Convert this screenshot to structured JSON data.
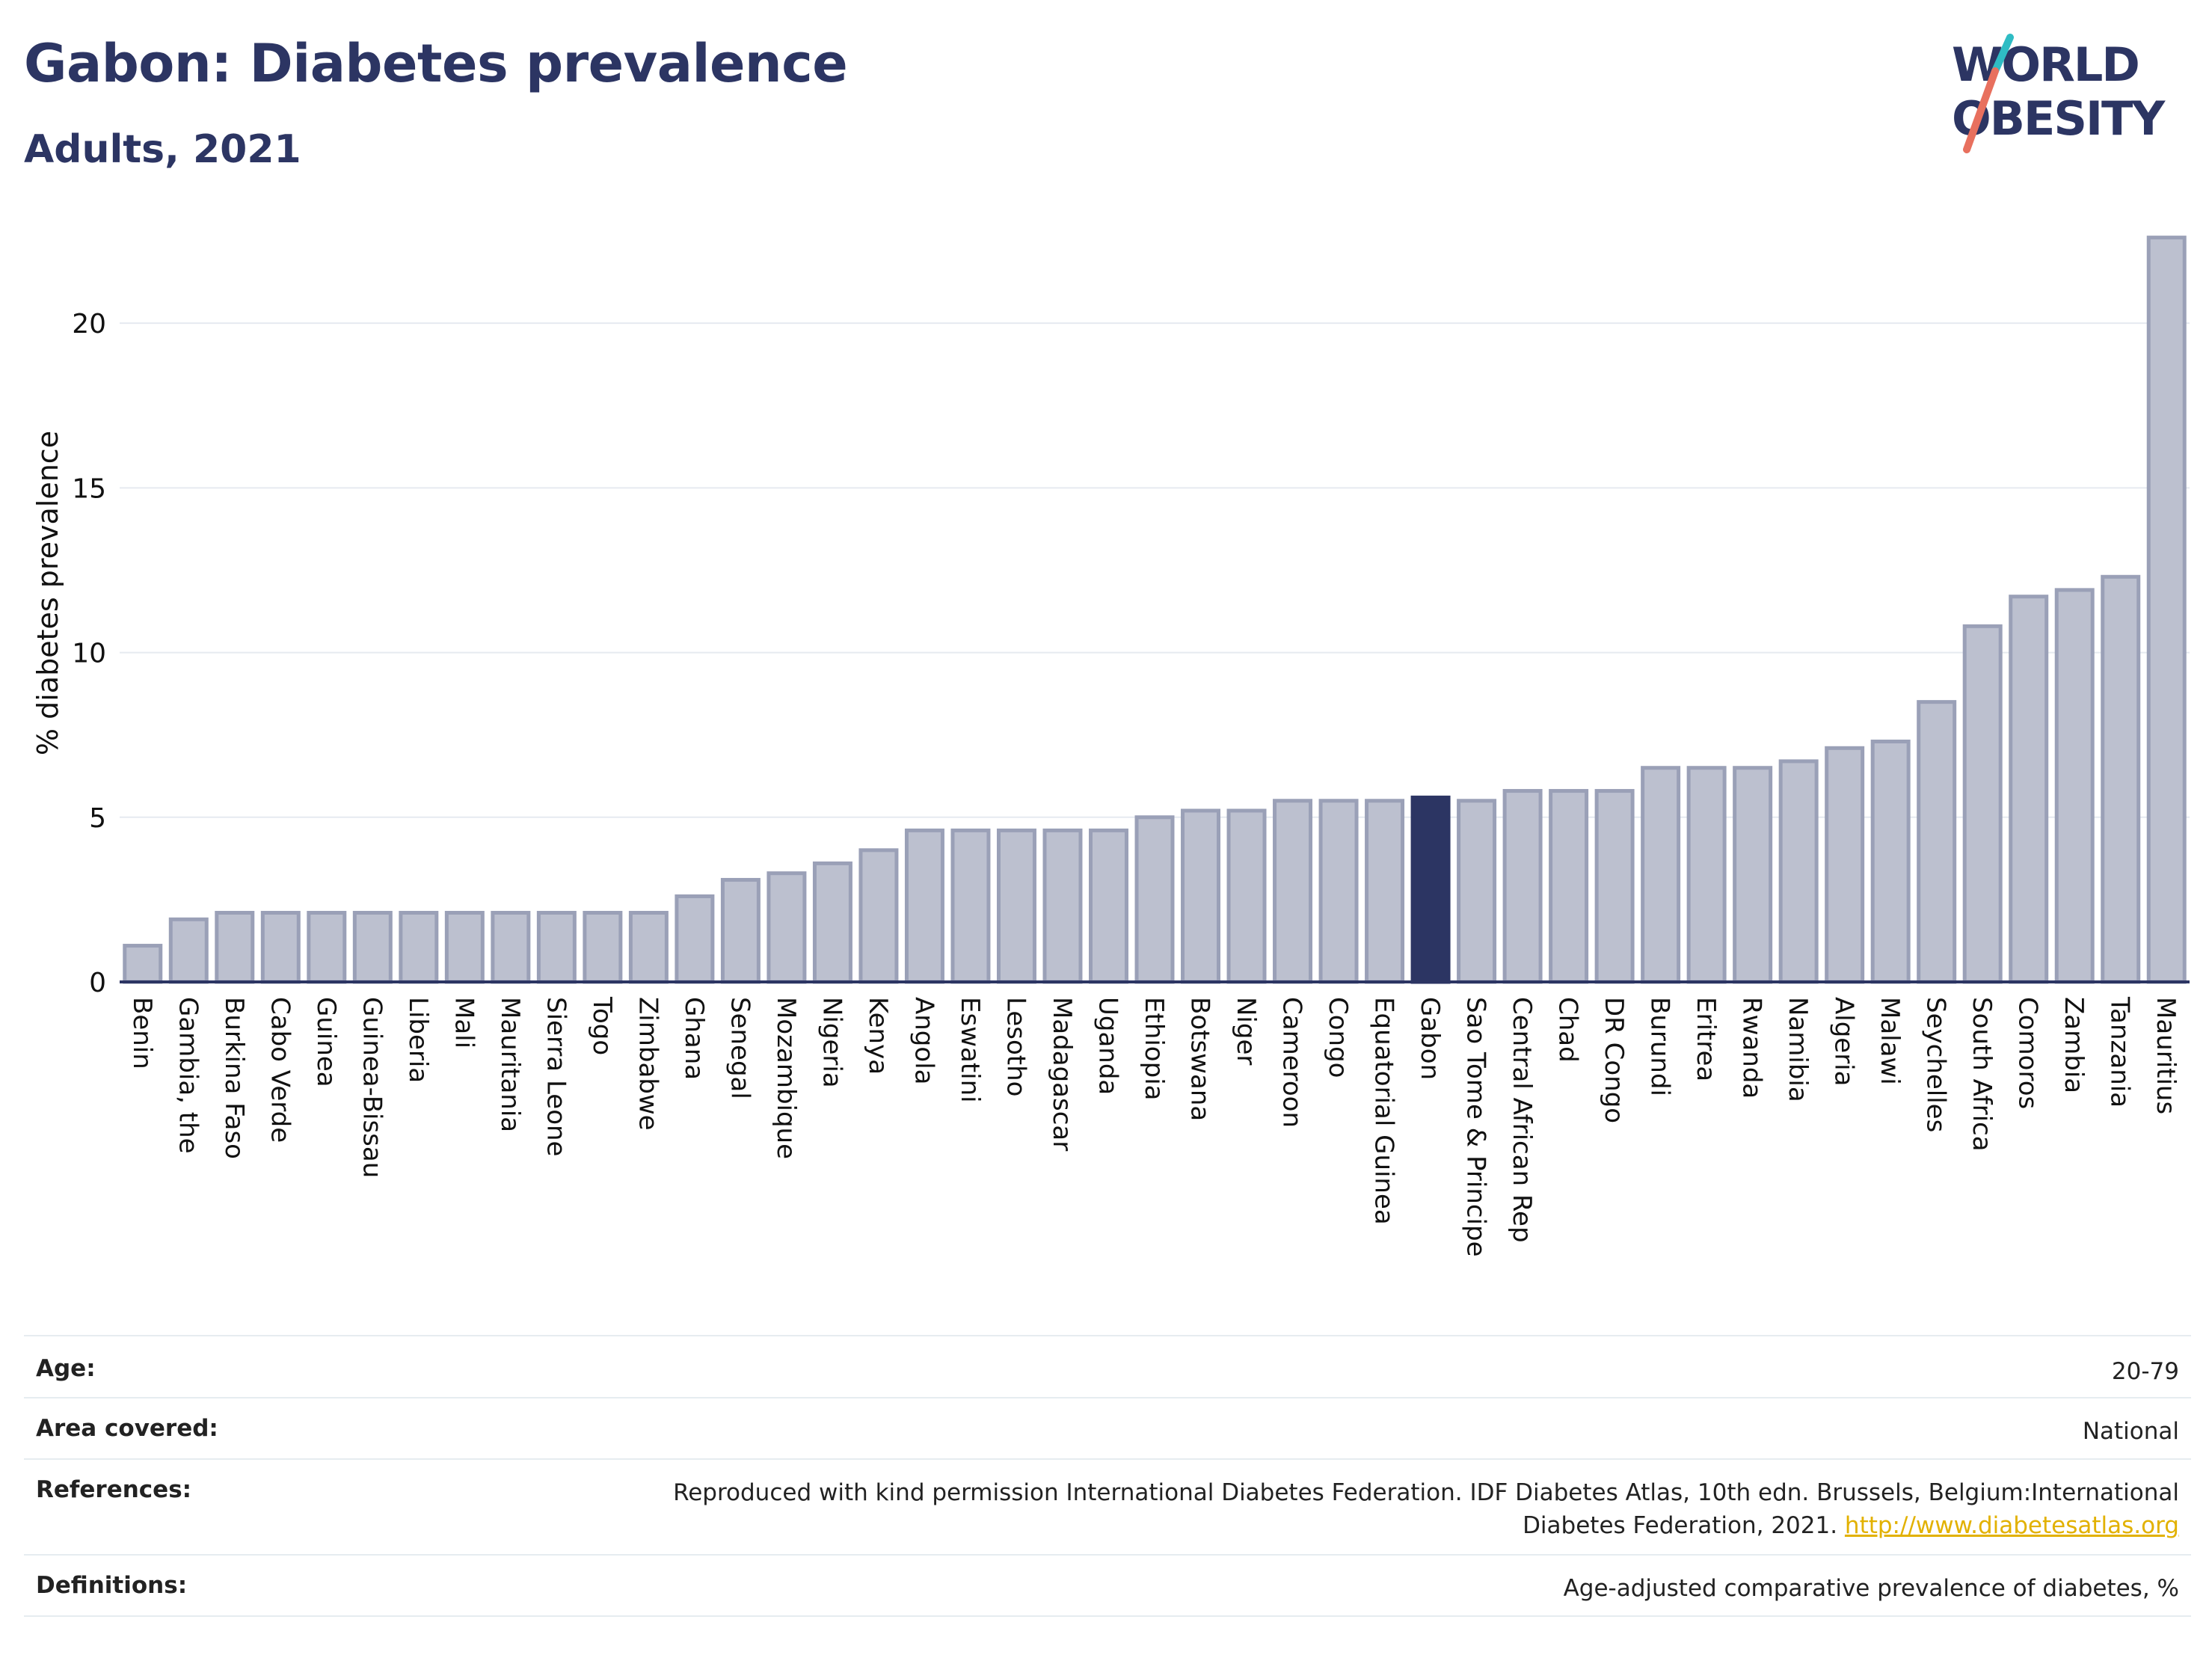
{
  "title": "Gabon: Diabetes prevalence",
  "subtitle": "Adults, 2021",
  "logo": {
    "line1": "WORLD",
    "line2": "OBESITY"
  },
  "chart_data": {
    "type": "bar",
    "ylabel": "% diabetes prevalence",
    "xlabel": "",
    "ylim": [
      0,
      23
    ],
    "yticks": [
      0,
      5,
      10,
      15,
      20
    ],
    "grid": true,
    "highlight": "Gabon",
    "colors": {
      "bar": "#bcc0cf",
      "bar_edge": "#9aa0b7",
      "highlight": "#2c3563",
      "grid": "#e6eaf0",
      "axis": "#2c3563"
    },
    "categories": [
      "Benin",
      "Gambia, the",
      "Burkina Faso",
      "Cabo Verde",
      "Guinea",
      "Guinea-Bissau",
      "Liberia",
      "Mali",
      "Mauritania",
      "Sierra Leone",
      "Togo",
      "Zimbabwe",
      "Ghana",
      "Senegal",
      "Mozambique",
      "Nigeria",
      "Kenya",
      "Angola",
      "Eswatini",
      "Lesotho",
      "Madagascar",
      "Uganda",
      "Ethiopia",
      "Botswana",
      "Niger",
      "Cameroon",
      "Congo",
      "Equatorial Guinea",
      "Gabon",
      "Sao Tome & Principe",
      "Central African Rep",
      "Chad",
      "DR Congo",
      "Burundi",
      "Eritrea",
      "Rwanda",
      "Namibia",
      "Algeria",
      "Malawi",
      "Seychelles",
      "South Africa",
      "Comoros",
      "Zambia",
      "Tanzania",
      "Mauritius"
    ],
    "values": [
      1.1,
      1.9,
      2.1,
      2.1,
      2.1,
      2.1,
      2.1,
      2.1,
      2.1,
      2.1,
      2.1,
      2.1,
      2.6,
      3.1,
      3.3,
      3.6,
      4.0,
      4.6,
      4.6,
      4.6,
      4.6,
      4.6,
      5.0,
      5.2,
      5.2,
      5.5,
      5.5,
      5.5,
      5.6,
      5.5,
      5.8,
      5.8,
      5.8,
      6.5,
      6.5,
      6.5,
      6.7,
      7.1,
      7.3,
      8.5,
      10.8,
      11.7,
      11.9,
      12.3,
      22.6
    ]
  },
  "meta": {
    "age_label": "Age:",
    "age_value": "20-79",
    "area_label": "Area covered:",
    "area_value": "National",
    "references_label": "References:",
    "references_line1": "Reproduced with kind permission International Diabetes Federation.  IDF Diabetes Atlas, 10th edn. Brussels, Belgium:International",
    "references_line2": "Diabetes Federation, 2021.",
    "references_link": "http://www.diabetesatlas.org",
    "definitions_label": "Definitions:",
    "definitions_value": "Age-adjusted comparative prevalence of diabetes, %"
  }
}
